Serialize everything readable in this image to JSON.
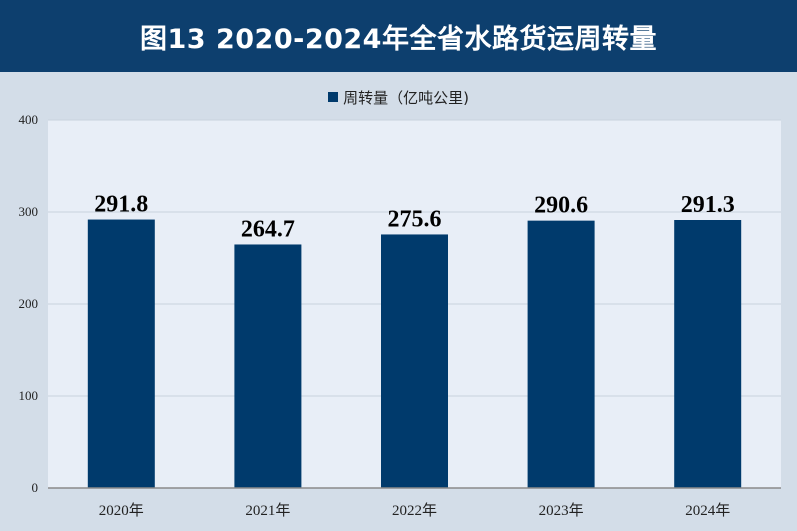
{
  "title": "图13  2020-2024年全省水路货运周转量",
  "legend": {
    "label": "周转量（亿吨公里)"
  },
  "colors": {
    "header": "#0d3f6e",
    "bar": "#003a6c",
    "plot_bg": "#e8eef7",
    "page_bg": "#d3dde8"
  },
  "chart_data": {
    "type": "bar",
    "title": "图13  2020-2024年全省水路货运周转量",
    "categories": [
      "2020年",
      "2021年",
      "2022年",
      "2023年",
      "2024年"
    ],
    "series": [
      {
        "name": "周转量（亿吨公里)",
        "values": [
          291.8,
          264.7,
          275.6,
          290.6,
          291.3
        ]
      }
    ],
    "data_labels": [
      "291.8",
      "264.7",
      "275.6",
      "290.6",
      "291.3"
    ],
    "ylim": [
      0,
      400
    ],
    "yticks": [
      "0",
      "100",
      "200",
      "300",
      "400"
    ],
    "grid": true,
    "legend_position": "top-center"
  }
}
